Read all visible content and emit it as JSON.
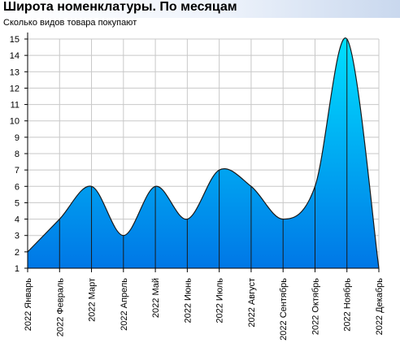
{
  "header": {
    "title": "Широта номенклатуры. По месяцам",
    "subtitle": "Сколько видов товара покупают"
  },
  "chart_data": {
    "type": "area",
    "title": "Широта номенклатуры. По месяцам",
    "subtitle": "Сколько видов товара покупают",
    "categories": [
      "2022 Январь",
      "2022 Февраль",
      "2022 Март",
      "2022 Апрель",
      "2022 Май",
      "2022 Июнь",
      "2022 Июль",
      "2022 Август",
      "2022 Сентябрь",
      "2022 Октябрь",
      "2022 Ноябрь",
      "2022 Декабрь"
    ],
    "values": [
      2,
      4,
      6,
      3,
      6,
      4,
      7,
      6,
      4,
      6,
      15,
      1
    ],
    "ylim": [
      1,
      15
    ],
    "yticks": [
      1,
      2,
      3,
      4,
      5,
      6,
      7,
      8,
      9,
      10,
      11,
      12,
      13,
      14,
      15
    ],
    "grid": true,
    "colors": {
      "fill_top": "#00e0ff",
      "fill_bottom": "#0077e6",
      "grid": "#c8c8c8",
      "axis": "#000000",
      "header_gradient_end": "#c9d8ee"
    }
  }
}
